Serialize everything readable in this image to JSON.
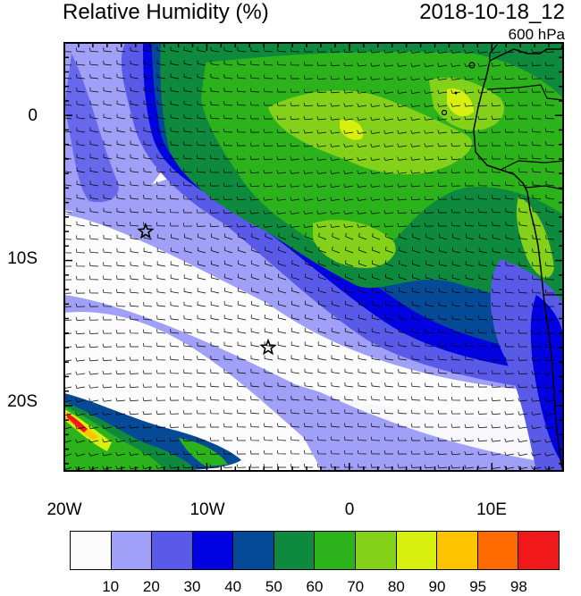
{
  "header": {
    "title": "Relative Humidity (%)",
    "datetime": "2018-10-18_12",
    "level": "600 hPa"
  },
  "axes": {
    "y_ticks": [
      {
        "label": "0",
        "lat": 0
      },
      {
        "label": "10S",
        "lat": -10
      },
      {
        "label": "20S",
        "lat": -20
      }
    ],
    "x_ticks": [
      {
        "label": "20W",
        "lon": -20
      },
      {
        "label": "10W",
        "lon": -10
      },
      {
        "label": "0",
        "lon": 0
      },
      {
        "label": "10E",
        "lon": 10
      }
    ],
    "lon_range": [
      -20,
      15
    ],
    "lat_range": [
      -24.5,
      5
    ]
  },
  "colorbar": {
    "colors": [
      "#fcfcfc",
      "#a0a0f8",
      "#5a5ae8",
      "#0000e0",
      "#054a96",
      "#0e8a3e",
      "#2cb31c",
      "#84d11a",
      "#d8f010",
      "#ffc400",
      "#ff6a00",
      "#f01818"
    ],
    "labels": [
      "10",
      "20",
      "30",
      "40",
      "50",
      "60",
      "70",
      "80",
      "90",
      "95",
      "98"
    ]
  },
  "markers": [
    {
      "name": "star-marker-1",
      "lon": -14.3,
      "lat": -8.0
    },
    {
      "name": "star-marker-2",
      "lon": -5.7,
      "lat": -16.0
    }
  ]
}
